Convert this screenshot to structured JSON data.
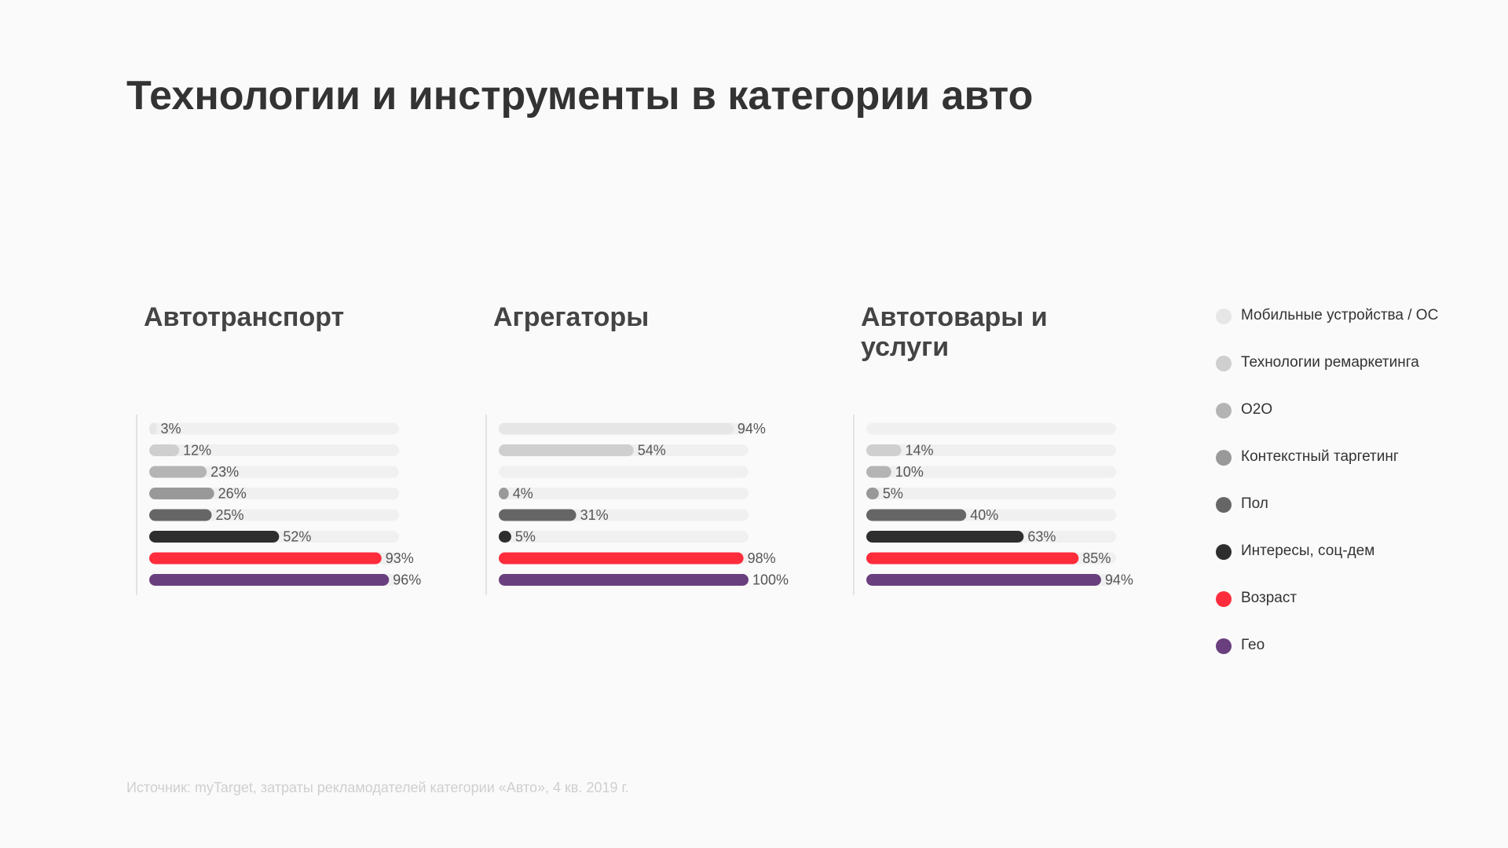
{
  "chart_data": {
    "type": "bar",
    "title": "Технологии и инструменты в категории авто",
    "categories": [
      "Автотранспорт",
      "Агрегаторы",
      "Автотовары и услуги"
    ],
    "xlim": [
      0,
      100
    ],
    "series": [
      {
        "name": "Мобильные устройства / ОС",
        "color": "#e6e6e6",
        "values": [
          3,
          94,
          null
        ],
        "value_labels": [
          "3%",
          "94%",
          null
        ]
      },
      {
        "name": "Технологии ремаркетинга",
        "color": "#cfcfcf",
        "values": [
          12,
          54,
          14
        ],
        "value_labels": [
          "12%",
          "54%",
          "14%"
        ]
      },
      {
        "name": "O2O",
        "color": "#b4b4b4",
        "values": [
          23,
          null,
          10
        ],
        "value_labels": [
          "23%",
          null,
          "10%"
        ]
      },
      {
        "name": "Контекстный таргетинг",
        "color": "#999999",
        "values": [
          26,
          4,
          5
        ],
        "value_labels": [
          "26%",
          "4%",
          "5%"
        ]
      },
      {
        "name": "Пол",
        "color": "#666666",
        "values": [
          25,
          31,
          40
        ],
        "value_labels": [
          "25%",
          "31%",
          "40%"
        ]
      },
      {
        "name": "Интересы, соц-дем",
        "color": "#2e2e2e",
        "values": [
          52,
          5,
          63
        ],
        "value_labels": [
          "52%",
          "5%",
          "63%"
        ]
      },
      {
        "name": "Возраст",
        "color": "#ff2d3c",
        "values": [
          93,
          98,
          85
        ],
        "value_labels": [
          "93%",
          "98%",
          "85%"
        ]
      },
      {
        "name": "Гео",
        "color": "#6a3f7e",
        "values": [
          96,
          100,
          94
        ],
        "value_labels": [
          "96%",
          "100%",
          "94%"
        ]
      }
    ],
    "source": "Источник: myTarget, затраты рекламодателей категории «Авто», 4 кв. 2019 г."
  }
}
